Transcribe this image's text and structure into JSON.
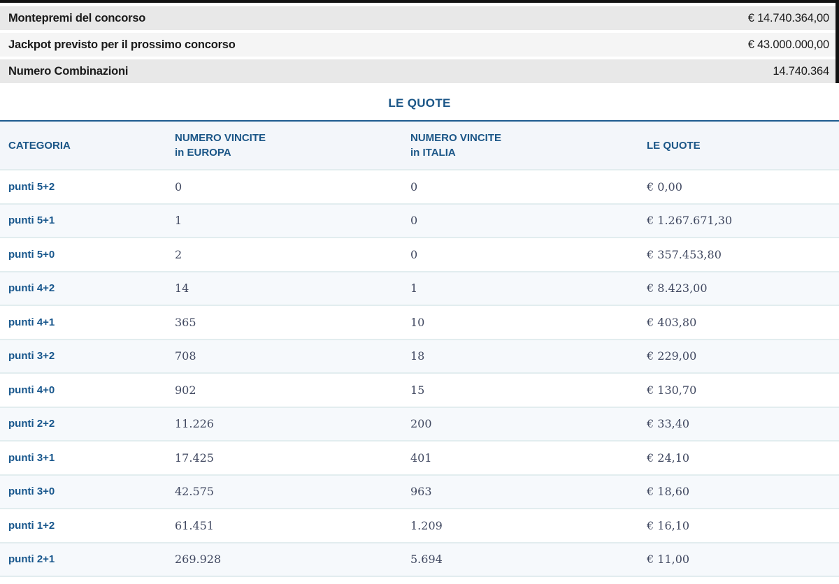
{
  "summary": {
    "rows": [
      {
        "label": "Montepremi del concorso",
        "value": "€ 14.740.364,00"
      },
      {
        "label": "Jackpot previsto per il prossimo concorso",
        "value": "€ 43.000.000,00"
      },
      {
        "label": "Numero Combinazioni",
        "value": "14.740.364"
      }
    ]
  },
  "quote_section": {
    "title": "LE QUOTE",
    "headers": {
      "categoria": "CATEGORIA",
      "europa_line1": "NUMERO VINCITE",
      "europa_line2": "in EUROPA",
      "italia_line1": "NUMERO VINCITE",
      "italia_line2": "in ITALIA",
      "quote": "LE QUOTE"
    },
    "rows": [
      {
        "categoria": "punti 5+2",
        "vincite_europa": "0",
        "vincite_italia": "0",
        "quota": "€ 0,00"
      },
      {
        "categoria": "punti 5+1",
        "vincite_europa": "1",
        "vincite_italia": "0",
        "quota": "€ 1.267.671,30"
      },
      {
        "categoria": "punti 5+0",
        "vincite_europa": "2",
        "vincite_italia": "0",
        "quota": "€ 357.453,80"
      },
      {
        "categoria": "punti 4+2",
        "vincite_europa": "14",
        "vincite_italia": "1",
        "quota": "€ 8.423,00"
      },
      {
        "categoria": "punti 4+1",
        "vincite_europa": "365",
        "vincite_italia": "10",
        "quota": "€ 403,80"
      },
      {
        "categoria": "punti 3+2",
        "vincite_europa": "708",
        "vincite_italia": "18",
        "quota": "€ 229,00"
      },
      {
        "categoria": "punti 4+0",
        "vincite_europa": "902",
        "vincite_italia": "15",
        "quota": "€ 130,70"
      },
      {
        "categoria": "punti 2+2",
        "vincite_europa": "11.226",
        "vincite_italia": "200",
        "quota": "€ 33,40"
      },
      {
        "categoria": "punti 3+1",
        "vincite_europa": "17.425",
        "vincite_italia": "401",
        "quota": "€ 24,10"
      },
      {
        "categoria": "punti 3+0",
        "vincite_europa": "42.575",
        "vincite_italia": "963",
        "quota": "€ 18,60"
      },
      {
        "categoria": "punti 1+2",
        "vincite_europa": "61.451",
        "vincite_italia": "1.209",
        "quota": "€ 16,10"
      },
      {
        "categoria": "punti 2+1",
        "vincite_europa": "269.928",
        "vincite_italia": "5.694",
        "quota": "€ 11,00"
      }
    ]
  },
  "colors": {
    "accent_blue": "#1b5687",
    "header_rule": "#1d5b8f",
    "summary_gray": "#e8e8e8",
    "summary_light_gray": "#f5f5f5",
    "header_bg": "#f3f6fa",
    "alt_row_bg": "#f6f9fc",
    "row_separator": "#e2edef",
    "number_color": "#414961",
    "edge_bar": "#121212"
  }
}
